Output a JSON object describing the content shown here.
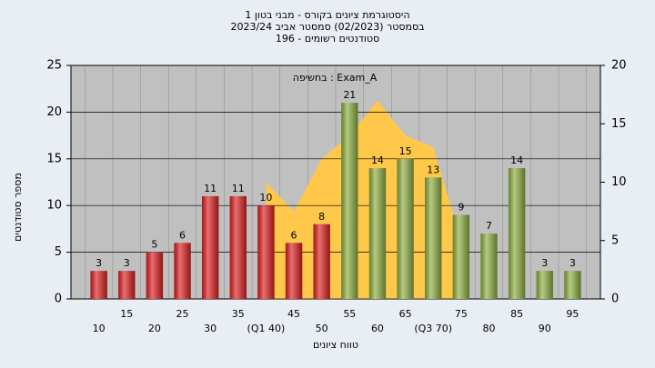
{
  "chart_data": {
    "type": "bar",
    "title": [
      "היסטוגרמת ציונים בקורס - מבני בטון 1",
      "בסמסטר  (02/2023)  סמסטר אביב 2023/24",
      "סטודנטים רשומים - 196"
    ],
    "annotation": "Exam_A : בחשיפה",
    "y_label": "מספר סטודנטים",
    "x_label": "טווח ציונים",
    "categories": [
      "10",
      "15",
      "20",
      "25",
      "30",
      "35",
      "(Q1 40)",
      "45",
      "50",
      "55",
      "60",
      "65",
      "(Q3 70)",
      "75",
      "80",
      "85",
      "90",
      "95"
    ],
    "values": [
      3,
      3,
      5,
      6,
      11,
      11,
      10,
      6,
      8,
      21,
      14,
      15,
      13,
      9,
      7,
      14,
      3,
      3
    ],
    "colors": [
      "#e02020",
      "#e02020",
      "#e02020",
      "#e02020",
      "#e02020",
      "#e02020",
      "#e02020",
      "#e02020",
      "#e02020",
      "#8fb040",
      "#8fb040",
      "#8fb040",
      "#8fb040",
      "#8fb040",
      "#8fb040",
      "#8fb040",
      "#8fb040",
      "#8fb040"
    ],
    "area": {
      "color": "#ffc84a",
      "axis": "y2",
      "values": [
        null,
        null,
        null,
        null,
        null,
        null,
        10,
        7.5,
        12,
        14,
        17,
        14,
        13,
        5,
        null,
        null,
        null,
        null
      ]
    },
    "ylim": [
      0,
      25
    ],
    "yticks": [
      0,
      5,
      10,
      15,
      20,
      25
    ],
    "y2lim": [
      0,
      20
    ],
    "y2ticks": [
      0,
      5,
      10,
      15,
      20
    ],
    "grid": true
  }
}
